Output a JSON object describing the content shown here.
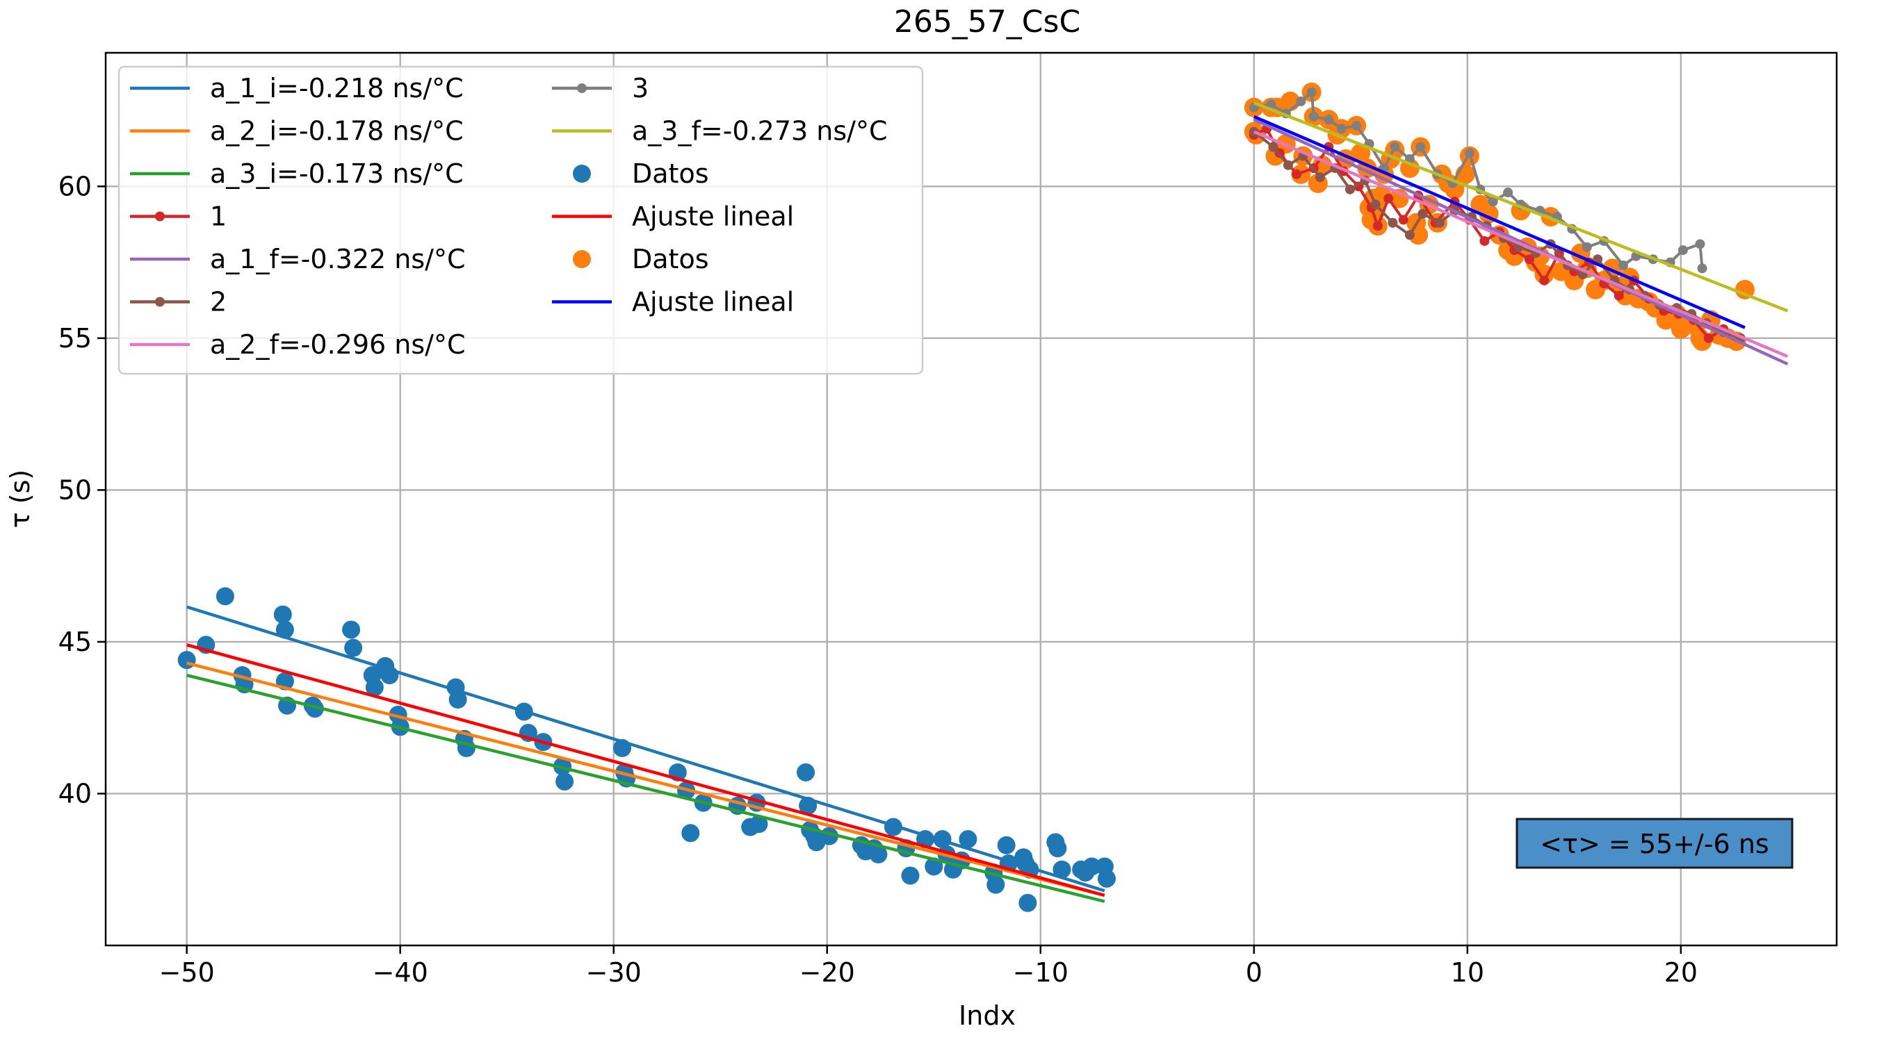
{
  "chart_data": {
    "type": "scatter",
    "title": "265_57_CsC",
    "xlabel": "Indx",
    "ylabel": "τ (s)",
    "xlim": [
      -53.8,
      27.3
    ],
    "ylim": [
      35.0,
      64.4
    ],
    "xticks": [
      -50,
      -40,
      -30,
      -20,
      -10,
      0,
      10,
      20
    ],
    "xtick_labels": [
      "−50",
      "−40",
      "−30",
      "−20",
      "−10",
      "0",
      "10",
      "20"
    ],
    "yticks": [
      40,
      45,
      50,
      55,
      60
    ],
    "ytick_labels": [
      "40",
      "45",
      "50",
      "55",
      "60"
    ],
    "grid": true,
    "legend_position": "top-left",
    "annotation": "<τ> = 55+/-6 ns",
    "colors": {
      "a_1_i": "#1f77b4",
      "a_2_i": "#ff7f0e",
      "a_3_i": "#2ca02c",
      "s1": "#d62728",
      "a_1_f": "#9467bd",
      "s2": "#8c564b",
      "a_2_f": "#e377c2",
      "s3": "#7f7f7f",
      "a_3_f": "#bcbd22",
      "datos1": "#1f77b4",
      "ajuste1": "#ff0000",
      "datos2": "#ff7f0e",
      "ajuste2": "#0000ff",
      "annotation_bg": "#4a8fc7",
      "grid": "#b0b0b0"
    },
    "legend": [
      {
        "key": "a_1_i",
        "label": "a_1_i=-0.218 ns/°C",
        "kind": "line"
      },
      {
        "key": "a_2_i",
        "label": "a_2_i=-0.178 ns/°C",
        "kind": "line"
      },
      {
        "key": "a_3_i",
        "label": "a_3_i=-0.173 ns/°C",
        "kind": "line"
      },
      {
        "key": "s1",
        "label": "1",
        "kind": "linemarker"
      },
      {
        "key": "a_1_f",
        "label": "a_1_f=-0.322 ns/°C",
        "kind": "line"
      },
      {
        "key": "s2",
        "label": "2",
        "kind": "linemarker"
      },
      {
        "key": "a_2_f",
        "label": "a_2_f=-0.296 ns/°C",
        "kind": "line"
      },
      {
        "key": "s3",
        "label": "3",
        "kind": "linemarker"
      },
      {
        "key": "a_3_f",
        "label": "a_3_f=-0.273 ns/°C",
        "kind": "line"
      },
      {
        "key": "datos1",
        "label": "Datos",
        "kind": "dot"
      },
      {
        "key": "ajuste1",
        "label": "Ajuste lineal",
        "kind": "line"
      },
      {
        "key": "datos2",
        "label": "Datos",
        "kind": "dot"
      },
      {
        "key": "ajuste2",
        "label": "Ajuste lineal",
        "kind": "line"
      }
    ],
    "fit_lines": [
      {
        "key": "a_1_i",
        "x": [
          -50,
          -7
        ],
        "y": [
          46.15,
          36.8
        ]
      },
      {
        "key": "a_2_i",
        "x": [
          -50,
          -7
        ],
        "y": [
          44.3,
          36.65
        ]
      },
      {
        "key": "a_3_i",
        "x": [
          -50,
          -7
        ],
        "y": [
          43.9,
          36.45
        ]
      },
      {
        "key": "ajuste1",
        "x": [
          -50,
          -7
        ],
        "y": [
          44.9,
          36.65
        ]
      },
      {
        "key": "a_1_f",
        "x": [
          0,
          25
        ],
        "y": [
          62.2,
          54.15
        ]
      },
      {
        "key": "a_2_f",
        "x": [
          0,
          25
        ],
        "y": [
          61.8,
          54.4
        ]
      },
      {
        "key": "a_3_f",
        "x": [
          0,
          25
        ],
        "y": [
          62.75,
          55.9
        ]
      },
      {
        "key": "ajuste2",
        "x": [
          0,
          23
        ],
        "y": [
          62.3,
          55.35
        ]
      }
    ],
    "series_1": {
      "x": [
        0,
        0.6,
        1.2,
        2.0,
        2.8,
        3.5,
        4.2,
        4.9,
        5.5,
        5.8,
        6.3,
        7.0,
        7.7,
        8.5,
        9.4,
        10.1,
        10.8,
        11.5,
        12.2,
        12.9,
        13.6,
        14.3,
        15.0,
        15.7,
        16.4,
        17.1,
        17.8,
        18.5,
        19.2,
        19.9,
        20.6,
        21.3,
        22.0,
        22.8
      ],
      "y": [
        61.7,
        61.9,
        61.1,
        60.4,
        60.6,
        61.3,
        60.5,
        60.0,
        59.3,
        58.7,
        59.6,
        58.9,
        59.7,
        58.8,
        59.5,
        58.9,
        58.2,
        58.5,
        57.9,
        57.6,
        56.9,
        57.8,
        57.2,
        57.5,
        56.8,
        56.4,
        56.9,
        56.3,
        55.9,
        55.8,
        55.6,
        55.0,
        55.3,
        55.0
      ]
    },
    "series_2": {
      "x": [
        0,
        0.9,
        1.6,
        2.3,
        3.1,
        3.8,
        4.5,
        5.2,
        5.7,
        6.5,
        7.3,
        7.9,
        8.7,
        9.4,
        10.2,
        10.9,
        11.7,
        12.4,
        13.2,
        13.9,
        14.7,
        15.4,
        16.1,
        16.9,
        17.6,
        18.3,
        19.0,
        19.8,
        20.5,
        21.2,
        22.0,
        22.8
      ],
      "y": [
        61.8,
        61.3,
        60.7,
        61.0,
        60.3,
        60.6,
        59.9,
        60.2,
        59.4,
        58.8,
        58.4,
        59.1,
        58.8,
        59.2,
        59.0,
        58.7,
        58.3,
        58.0,
        57.8,
        58.1,
        57.4,
        57.1,
        57.6,
        56.9,
        56.6,
        56.4,
        56.1,
        56.0,
        55.8,
        55.5,
        55.2,
        55.0
      ]
    },
    "series_3": {
      "x": [
        0,
        0.8,
        1.5,
        2.2,
        2.7,
        2.8,
        3.5,
        4.1,
        4.8,
        5.4,
        6.1,
        6.6,
        7.3,
        7.8,
        8.6,
        9.3,
        10.1,
        10.6,
        11.2,
        11.9,
        12.5,
        13.4,
        14.2,
        14.9,
        15.6,
        16.4,
        17.3,
        17.9,
        18.7,
        19.5,
        20.1,
        20.9,
        21.0
      ],
      "y": [
        62.6,
        62.7,
        62.4,
        62.8,
        63.1,
        62.3,
        62.2,
        61.9,
        62.0,
        61.4,
        60.6,
        61.3,
        60.9,
        61.3,
        60.4,
        60.1,
        61.1,
        59.9,
        59.5,
        59.8,
        59.4,
        59.2,
        59.0,
        58.6,
        58.0,
        58.2,
        57.4,
        57.7,
        57.6,
        57.5,
        57.9,
        58.1,
        57.3
      ]
    },
    "datos1": {
      "x": [
        -50.0,
        -49.1,
        -48.2,
        -47.4,
        -47.3,
        -45.5,
        -45.4,
        -45.4,
        -45.3,
        -44.1,
        -44.0,
        -42.3,
        -42.2,
        -41.3,
        -41.2,
        -40.7,
        -40.5,
        -40.1,
        -40.0,
        -37.4,
        -37.3,
        -37.0,
        -36.9,
        -34.2,
        -34.0,
        -33.3,
        -32.4,
        -32.3,
        -29.6,
        -29.5,
        -29.4,
        -27.0,
        -26.6,
        -26.4,
        -25.8,
        -24.2,
        -23.6,
        -23.3,
        -23.2,
        -21.0,
        -20.9,
        -20.8,
        -20.6,
        -20.5,
        -19.9,
        -18.4,
        -18.2,
        -17.8,
        -17.6,
        -16.9,
        -16.3,
        -16.1,
        -15.4,
        -15.0,
        -14.6,
        -14.4,
        -14.1,
        -13.7,
        -13.4,
        -12.2,
        -12.1,
        -11.6,
        -11.5,
        -10.8,
        -10.7,
        -10.6,
        -10.5,
        -9.3,
        -9.2,
        -9.0,
        -8.1,
        -7.9,
        -7.6,
        -7.0,
        -6.9
      ],
      "y": [
        44.4,
        44.9,
        46.5,
        43.9,
        43.6,
        45.9,
        45.4,
        43.7,
        42.9,
        42.9,
        42.8,
        45.4,
        44.8,
        43.9,
        43.5,
        44.2,
        43.9,
        42.6,
        42.2,
        43.5,
        43.1,
        41.8,
        41.5,
        42.7,
        42.0,
        41.7,
        40.9,
        40.4,
        41.5,
        40.7,
        40.5,
        40.7,
        40.1,
        38.7,
        39.7,
        39.6,
        38.9,
        39.7,
        39.0,
        40.7,
        39.6,
        38.8,
        38.6,
        38.4,
        38.6,
        38.3,
        38.1,
        38.2,
        38.0,
        38.9,
        38.2,
        37.3,
        38.5,
        37.6,
        38.5,
        38.0,
        37.5,
        37.8,
        38.5,
        37.4,
        37.0,
        38.3,
        37.7,
        37.9,
        37.7,
        36.4,
        37.5,
        38.4,
        38.2,
        37.5,
        37.5,
        37.4,
        37.6,
        37.6,
        37.2
      ]
    },
    "datos2": {
      "x": [
        0,
        0,
        0.1,
        0.8,
        1.0,
        1.1,
        1.5,
        1.7,
        2.2,
        2.3,
        2.7,
        2.8,
        3.0,
        3.2,
        3.5,
        3.9,
        4.1,
        4.3,
        4.8,
        5.0,
        5.3,
        5.4,
        5.5,
        5.6,
        5.7,
        5.8,
        6.0,
        6.1,
        6.4,
        6.6,
        6.8,
        7.3,
        7.6,
        7.7,
        7.8,
        8.2,
        8.6,
        8.8,
        9.1,
        9.4,
        9.9,
        10.1,
        10.6,
        11.0,
        11.5,
        11.9,
        12.2,
        12.5,
        12.8,
        13.2,
        13.4,
        13.6,
        13.9,
        14.4,
        15.0,
        15.3,
        15.6,
        16.0,
        16.4,
        16.8,
        17.2,
        17.4,
        17.6,
        18.0,
        18.5,
        18.8,
        19.3,
        19.8,
        20.0,
        20.4,
        20.7,
        20.9,
        21.0,
        21.4,
        21.8,
        22.2,
        22.6,
        23.0
      ],
      "y": [
        62.6,
        61.8,
        61.7,
        62.6,
        61.0,
        62.6,
        61.4,
        62.8,
        60.4,
        61.0,
        63.1,
        62.3,
        60.1,
        60.7,
        62.2,
        61.7,
        61.9,
        60.9,
        62.0,
        61.1,
        60.6,
        59.3,
        58.9,
        59.6,
        59.2,
        58.7,
        59.7,
        60.4,
        60.9,
        61.2,
        59.6,
        60.6,
        58.8,
        58.4,
        61.3,
        59.4,
        58.8,
        60.4,
        60.1,
        59.9,
        60.4,
        61.0,
        59.4,
        59.1,
        58.4,
        57.9,
        57.7,
        59.2,
        58.0,
        57.5,
        57.7,
        57.1,
        59.0,
        57.2,
        56.9,
        57.8,
        57.3,
        56.6,
        56.9,
        57.3,
        56.7,
        56.4,
        57.0,
        56.3,
        56.2,
        56.0,
        55.6,
        55.8,
        55.3,
        55.5,
        55.4,
        55.0,
        54.9,
        55.6,
        55.1,
        55.0,
        54.9,
        56.6
      ]
    }
  }
}
